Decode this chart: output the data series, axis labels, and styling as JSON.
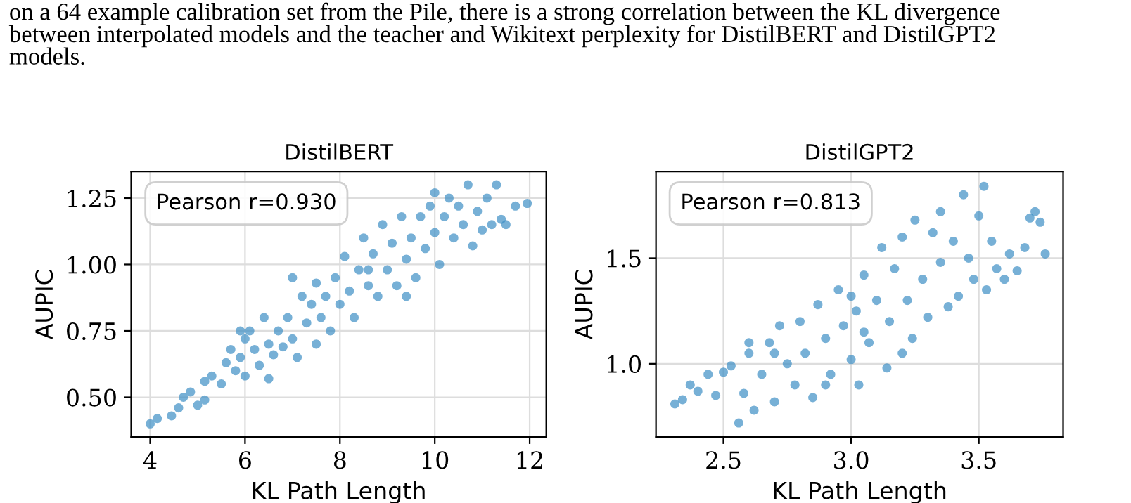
{
  "chart_data": [
    {
      "type": "scatter",
      "title": "DistilBERT",
      "xlabel": "KL Path Length",
      "ylabel": "AUPIC",
      "xlim": [
        3.6,
        12.35
      ],
      "ylim": [
        0.35,
        1.35
      ],
      "xticks": [
        4,
        6,
        8,
        10,
        12
      ],
      "yticks": [
        {
          "value": 0.5,
          "label": "0.50"
        },
        {
          "value": 0.75,
          "label": "0.75"
        },
        {
          "value": 1.0,
          "label": "1.00"
        },
        {
          "value": 1.25,
          "label": "1.25"
        }
      ],
      "grid": true,
      "marker": "circle",
      "annotations": [
        "on a 64 example calibration set from the Pile, there is a strong correlation between the KL divergence\nbetween interpolated models and the teacher and Wikitext perplexity for DistilBERT and DistilGPT2\nmodels.",
        {
          "text": "Pearson r=0.930"
        }
      ],
      "series": [
        {
          "color": "#3d8fc4",
          "x": [
            4.0,
            4.15,
            4.45,
            4.6,
            4.7,
            4.85,
            5.0,
            5.15,
            5.15,
            5.3,
            5.5,
            5.6,
            5.7,
            5.8,
            5.9,
            6.0,
            6.0,
            6.1,
            6.2,
            6.3,
            6.4,
            6.5,
            6.6,
            6.7,
            6.8,
            6.9,
            7.0,
            7.1,
            7.2,
            7.3,
            7.4,
            7.5,
            7.6,
            7.7,
            7.8,
            7.9,
            8.0,
            8.1,
            8.2,
            8.3,
            8.4,
            8.5,
            8.6,
            8.7,
            8.8,
            8.9,
            9.0,
            9.1,
            9.2,
            9.3,
            9.4,
            9.5,
            9.6,
            9.7,
            9.8,
            9.9,
            10.0,
            10.0,
            10.1,
            10.2,
            10.3,
            10.4,
            10.5,
            10.6,
            10.7,
            10.8,
            10.9,
            11.0,
            11.1,
            11.3,
            11.2,
            11.4,
            11.5,
            11.7,
            11.95,
            7.0,
            6.5,
            8.6,
            9.4,
            5.9,
            7.5
          ],
          "values": [
            0.4,
            0.42,
            0.43,
            0.46,
            0.5,
            0.52,
            0.47,
            0.49,
            0.56,
            0.58,
            0.55,
            0.63,
            0.68,
            0.6,
            0.65,
            0.58,
            0.72,
            0.75,
            0.68,
            0.62,
            0.8,
            0.7,
            0.66,
            0.75,
            0.69,
            0.8,
            0.72,
            0.65,
            0.88,
            0.78,
            0.85,
            0.93,
            0.8,
            0.88,
            0.75,
            0.95,
            0.85,
            1.03,
            0.9,
            0.8,
            0.98,
            1.1,
            0.92,
            1.04,
            0.88,
            1.15,
            0.98,
            1.08,
            0.92,
            1.18,
            1.02,
            1.1,
            0.95,
            1.18,
            1.06,
            1.22,
            1.12,
            1.27,
            1.0,
            1.18,
            1.25,
            1.1,
            1.22,
            1.15,
            1.3,
            1.07,
            1.2,
            1.13,
            1.25,
            1.3,
            1.15,
            1.17,
            1.15,
            1.22,
            1.23,
            0.95,
            0.57,
            0.98,
            0.88,
            0.75,
            0.7
          ]
        }
      ]
    },
    {
      "type": "scatter",
      "title": "DistilGPT2",
      "xlabel": "KL Path Length",
      "ylabel": "AUPIC",
      "xlim": [
        2.236,
        3.83
      ],
      "ylim": [
        0.653,
        1.91
      ],
      "xticks": [
        2.5,
        {
          "value": 3.0,
          "label": "3.0"
        },
        3.5
      ],
      "yticks": [
        {
          "value": 1.0,
          "label": "1.0"
        },
        1.5
      ],
      "grid": true,
      "marker": "circle",
      "annotations": [
        {
          "text": "Pearson r=0.813"
        }
      ],
      "series": [
        {
          "color": "#3d8fc4",
          "x": [
            2.31,
            2.34,
            2.37,
            2.4,
            2.44,
            2.47,
            2.5,
            2.53,
            2.56,
            2.58,
            2.6,
            2.62,
            2.65,
            2.68,
            2.7,
            2.72,
            2.75,
            2.78,
            2.8,
            2.82,
            2.85,
            2.87,
            2.9,
            2.92,
            2.95,
            2.97,
            3.0,
            3.02,
            3.03,
            3.05,
            3.07,
            3.1,
            3.12,
            3.14,
            3.15,
            3.17,
            3.2,
            3.22,
            3.24,
            3.25,
            3.28,
            3.3,
            3.32,
            3.35,
            3.38,
            3.4,
            3.42,
            3.44,
            3.46,
            3.48,
            3.5,
            3.52,
            3.53,
            3.55,
            3.57,
            3.6,
            3.62,
            3.65,
            3.68,
            3.7,
            3.72,
            3.74,
            3.76,
            2.9,
            3.05,
            2.7,
            3.2,
            2.6,
            3.35,
            3.0
          ],
          "values": [
            0.81,
            0.83,
            0.9,
            0.87,
            0.95,
            0.85,
            0.96,
            0.99,
            0.72,
            0.86,
            1.05,
            0.78,
            0.95,
            1.1,
            0.82,
            1.18,
            1.0,
            0.9,
            1.2,
            1.05,
            0.84,
            1.28,
            1.12,
            0.95,
            1.35,
            1.18,
            1.02,
            1.25,
            0.9,
            1.42,
            1.1,
            1.3,
            1.55,
            0.98,
            1.2,
            1.45,
            1.6,
            1.3,
            1.12,
            1.68,
            1.4,
            1.22,
            1.62,
            1.48,
            1.27,
            1.58,
            1.32,
            1.8,
            1.5,
            1.4,
            1.7,
            1.84,
            1.35,
            1.58,
            1.45,
            1.4,
            1.52,
            1.44,
            1.55,
            1.69,
            1.72,
            1.67,
            1.52,
            0.9,
            1.15,
            1.05,
            1.05,
            1.1,
            1.72,
            1.32
          ]
        }
      ]
    }
  ]
}
